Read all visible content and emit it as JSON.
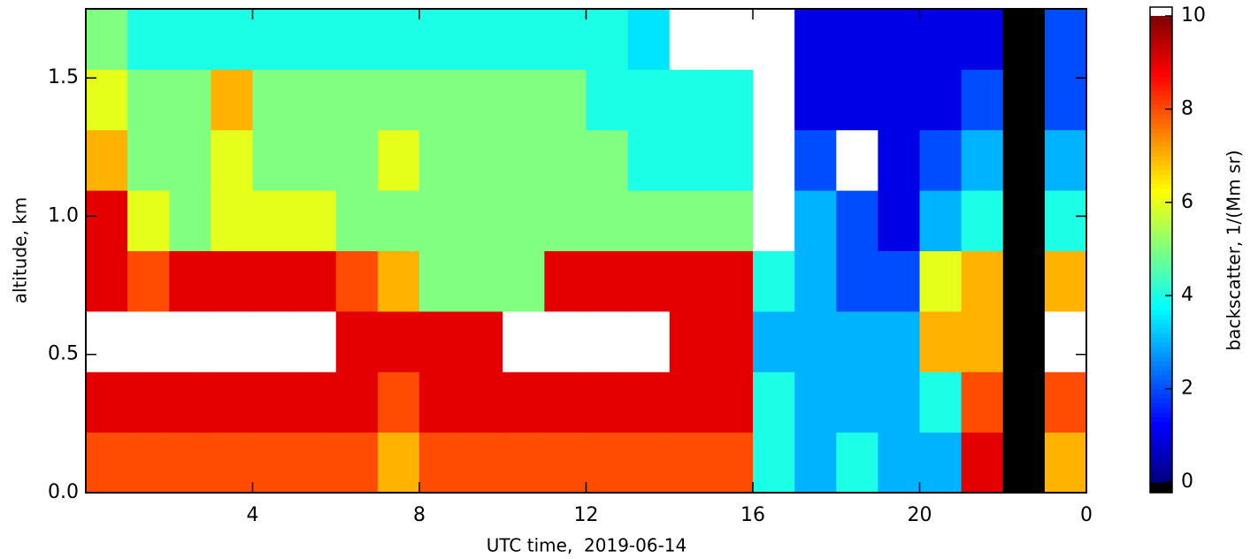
{
  "chart_data": {
    "type": "heatmap",
    "xlabel": "UTC time,  2019-06-14",
    "ylabel": "altitude, km",
    "colorbar_label": "backscatter, 1/(Mm sr)",
    "colormap": "jet",
    "over_color": "#ffffff",
    "under_color": "#000000",
    "xlim": [
      0,
      24
    ],
    "xticks": [
      4,
      8,
      12,
      16,
      20,
      {
        "value": 24,
        "label": "0"
      }
    ],
    "ylim": [
      0,
      1.75
    ],
    "yticks": [
      {
        "value": 0,
        "label": "0.0"
      },
      0.5,
      {
        "value": 1,
        "label": "1.0"
      },
      1.5
    ],
    "clim": [
      0,
      10
    ],
    "cticks": [
      0,
      2,
      4,
      6,
      8,
      10
    ],
    "xbins": [
      0,
      1,
      2,
      3,
      4,
      5,
      6,
      7,
      8,
      9,
      10,
      11,
      12,
      13,
      14,
      15,
      16,
      17,
      18,
      19,
      20,
      21,
      22,
      23,
      24
    ],
    "ybins": [
      0,
      0.21875,
      0.4375,
      0.65625,
      0.875,
      1.09375,
      1.3125,
      1.53125,
      1.75
    ],
    "z": [
      [
        8,
        8,
        8,
        8,
        8,
        8,
        8,
        7,
        8,
        8,
        8,
        8,
        8,
        8,
        8,
        8,
        4,
        3,
        4,
        3,
        3,
        9,
        -1,
        7
      ],
      [
        9,
        9,
        9,
        9,
        9,
        9,
        9,
        8,
        9,
        9,
        9,
        9,
        9,
        9,
        9,
        9,
        4,
        3,
        3,
        3,
        4,
        8,
        -1,
        8
      ],
      [
        12,
        12,
        12,
        12,
        12,
        12,
        9,
        9,
        9,
        9,
        12,
        12,
        12,
        12,
        9,
        9,
        3,
        3,
        3,
        3,
        7,
        7,
        -1,
        12
      ],
      [
        9,
        8,
        9,
        9,
        9,
        9,
        8,
        7,
        5,
        5,
        5,
        9,
        9,
        9,
        9,
        9,
        4,
        3,
        2,
        2,
        6,
        7,
        -1,
        7
      ],
      [
        9,
        6,
        5,
        6,
        6,
        6,
        5,
        5,
        5,
        5,
        5,
        5,
        5,
        5,
        5,
        5,
        12,
        3,
        2,
        1,
        3,
        4,
        -1,
        4
      ],
      [
        7,
        5,
        5,
        6,
        5,
        5,
        5,
        6,
        5,
        5,
        5,
        5,
        5,
        4,
        4,
        4,
        12,
        2,
        12,
        1,
        2,
        3,
        -1,
        3
      ],
      [
        6,
        5,
        5,
        7,
        5,
        5,
        5,
        5,
        5,
        5,
        5,
        5,
        4,
        4,
        4,
        4,
        12,
        1,
        1,
        1,
        1,
        2,
        -1,
        2
      ],
      [
        5,
        4,
        4,
        4,
        4,
        4,
        4,
        4,
        4,
        4,
        4,
        4,
        4,
        3.5,
        12,
        12,
        12,
        1,
        1,
        1,
        1,
        1,
        -1,
        2
      ]
    ]
  }
}
